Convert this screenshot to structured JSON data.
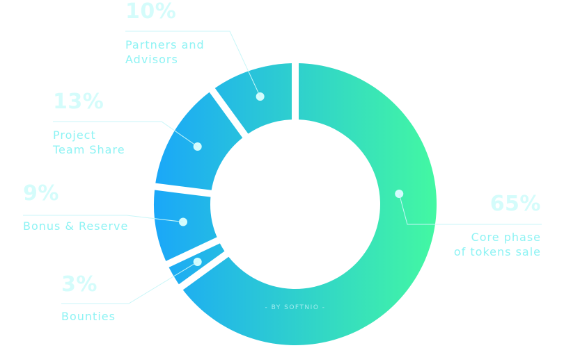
{
  "chart_data": {
    "type": "pie",
    "donut": true,
    "slices": [
      {
        "label": "Core phase of tokens sale",
        "label_lines": [
          "Core phase",
          "of tokens sale"
        ],
        "value": 65,
        "display": "65%"
      },
      {
        "label": "Bounties",
        "label_lines": [
          "Bounties"
        ],
        "value": 3,
        "display": "3%"
      },
      {
        "label": "Bonus & Reserve",
        "label_lines": [
          "Bonus & Reserve"
        ],
        "value": 9,
        "display": "9%"
      },
      {
        "label": "Project Team Share",
        "label_lines": [
          "Project",
          "Team Share"
        ],
        "value": 13,
        "display": "13%"
      },
      {
        "label": "Partners and Advisors",
        "label_lines": [
          "Partners and",
          "Advisors"
        ],
        "value": 10,
        "display": "10%"
      }
    ],
    "gradient": [
      "#1aa7f9",
      "#43f8a2"
    ],
    "legend": "none"
  },
  "credit": "- BY SOFTNIO -"
}
